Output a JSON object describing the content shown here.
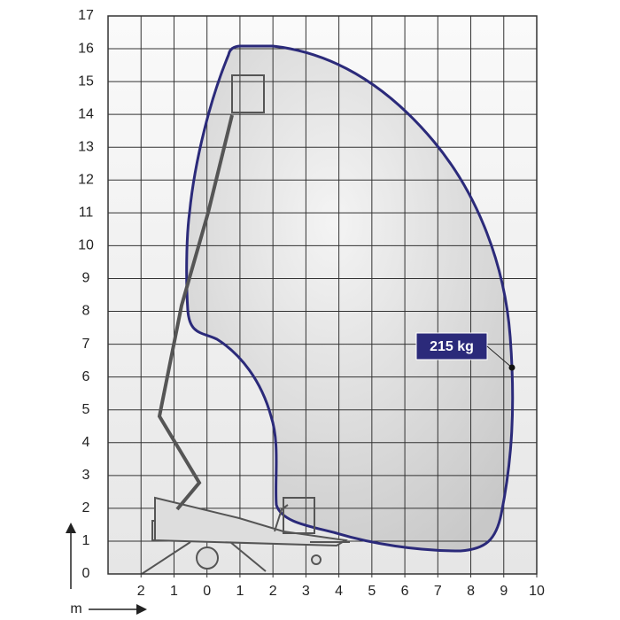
{
  "diagram": {
    "xlim": [
      -3,
      10
    ],
    "ylim": [
      0,
      17
    ],
    "xticks": [
      {
        "value": -2,
        "label": "2"
      },
      {
        "value": -1,
        "label": "1"
      },
      0,
      1,
      2,
      3,
      4,
      5,
      6,
      7,
      8,
      9,
      10
    ],
    "yticks": [
      0,
      1,
      2,
      3,
      4,
      5,
      6,
      7,
      8,
      9,
      10,
      11,
      12,
      13,
      14,
      15,
      16,
      17
    ],
    "unit": "m",
    "load_label": "215 kg"
  }
}
